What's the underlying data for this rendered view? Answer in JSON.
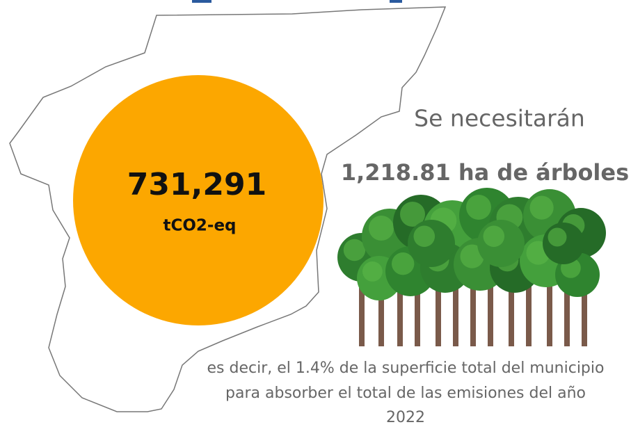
{
  "figure": {
    "value": "731,291",
    "unit": "tCO2-eq"
  },
  "statement": {
    "intro": "Se necesitarán",
    "highlight": "1,218.81 ha de árboles",
    "detail_lines": [
      "es decir, el 1.4% de la superficie total del municipio",
      "para absorber el total de las emisiones del año",
      "2022"
    ]
  }
}
